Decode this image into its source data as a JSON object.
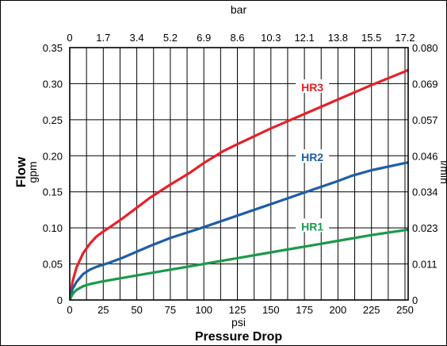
{
  "chart_data": {
    "type": "line",
    "xlabel": "Pressure Drop",
    "xunit": "psi",
    "x_top_unit": "bar",
    "ylabel": "Flow",
    "yunit": "gpm",
    "y_right_unit": "l/min",
    "xlim": [
      0,
      250
    ],
    "ylim": [
      0,
      0.35
    ],
    "x_ticks": [
      0,
      25,
      50,
      75,
      100,
      125,
      150,
      175,
      200,
      225,
      250
    ],
    "y_ticks": [
      0,
      0.05,
      0.1,
      0.15,
      0.2,
      0.25,
      0.3,
      0.35
    ],
    "y_tick_labels": [
      "0",
      "0.05",
      "0.10",
      "0.15",
      "0.20",
      "0.25",
      "0.30",
      "0.35"
    ],
    "x_top_ticks": [
      {
        "psi": 0,
        "label": "0"
      },
      {
        "psi": 25,
        "label": "1.7"
      },
      {
        "psi": 50,
        "label": "3.4"
      },
      {
        "psi": 75,
        "label": "5.2"
      },
      {
        "psi": 100,
        "label": "6.9"
      },
      {
        "psi": 125,
        "label": "8.6"
      },
      {
        "psi": 150,
        "label": "10.3"
      },
      {
        "psi": 175,
        "label": "12.1"
      },
      {
        "psi": 200,
        "label": "13.8"
      },
      {
        "psi": 225,
        "label": "15.5"
      },
      {
        "psi": 250,
        "label": "17.2"
      }
    ],
    "y_right_ticks": [
      {
        "gpm": 0,
        "label": "0"
      },
      {
        "gpm": 0.05,
        "label": "0.011"
      },
      {
        "gpm": 0.1,
        "label": "0.023"
      },
      {
        "gpm": 0.15,
        "label": "0.034"
      },
      {
        "gpm": 0.2,
        "label": "0.046"
      },
      {
        "gpm": 0.25,
        "label": "0.057"
      },
      {
        "gpm": 0.3,
        "label": "0.069"
      },
      {
        "gpm": 0.35,
        "label": "0.080"
      }
    ],
    "grid": true,
    "series": [
      {
        "name": "HR3",
        "color": "#e8202a",
        "x": [
          0,
          2,
          5,
          10,
          15,
          20,
          25,
          30,
          40,
          50,
          60,
          75,
          90,
          100,
          115,
          125,
          150,
          175,
          200,
          225,
          250,
          260
        ],
        "y": [
          0,
          0.025,
          0.045,
          0.065,
          0.078,
          0.088,
          0.095,
          0.101,
          0.114,
          0.128,
          0.142,
          0.16,
          0.177,
          0.19,
          0.207,
          0.216,
          0.238,
          0.258,
          0.278,
          0.298,
          0.317,
          0.325
        ]
      },
      {
        "name": "HR2",
        "color": "#1f5ea8",
        "x": [
          0,
          2,
          5,
          10,
          15,
          20,
          25,
          30,
          40,
          50,
          60,
          75,
          90,
          100,
          125,
          150,
          175,
          200,
          210,
          225,
          250,
          260
        ],
        "y": [
          0,
          0.015,
          0.025,
          0.036,
          0.042,
          0.046,
          0.049,
          0.052,
          0.059,
          0.067,
          0.075,
          0.086,
          0.095,
          0.101,
          0.117,
          0.133,
          0.149,
          0.165,
          0.172,
          0.18,
          0.19,
          0.193
        ]
      },
      {
        "name": "HR1",
        "color": "#1a9a4a",
        "x": [
          0,
          2,
          5,
          10,
          15,
          20,
          25,
          50,
          75,
          100,
          125,
          150,
          175,
          200,
          225,
          250,
          260
        ],
        "y": [
          0,
          0.008,
          0.014,
          0.019,
          0.022,
          0.024,
          0.026,
          0.034,
          0.042,
          0.05,
          0.058,
          0.066,
          0.074,
          0.082,
          0.09,
          0.097,
          0.099
        ]
      }
    ],
    "series_labels": [
      {
        "name": "HR3",
        "x": 175,
        "y": 0.295
      },
      {
        "name": "HR2",
        "x": 175,
        "y": 0.198
      },
      {
        "name": "HR1",
        "x": 175,
        "y": 0.102
      }
    ]
  }
}
